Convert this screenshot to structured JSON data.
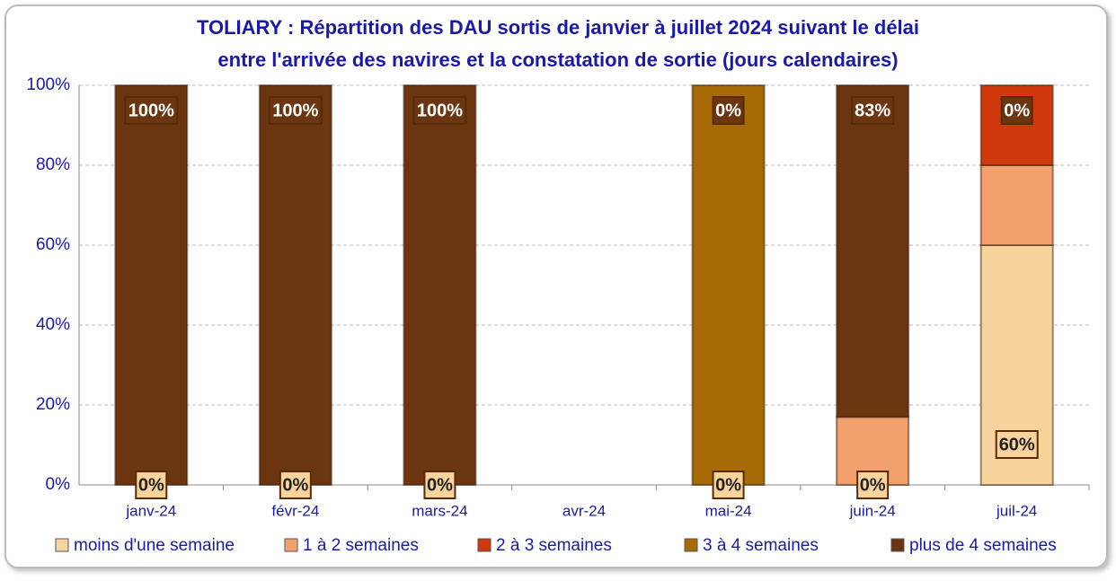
{
  "chart_data": {
    "type": "stacked_bar",
    "title": [
      "TOLIARY : Répartition des DAU sortis de janvier à juillet 2024 suivant le délai",
      "entre l'arrivée des navires et la constatation de sortie (jours calendaires)"
    ],
    "categories": [
      "janv-24",
      "févr-24",
      "mars-24",
      "avr-24",
      "mai-24",
      "juin-24",
      "juil-24"
    ],
    "series": [
      {
        "name": "moins d'une semaine",
        "color": "#f8d49c",
        "values": [
          0,
          0,
          0,
          null,
          0,
          0,
          60
        ],
        "value_labels": [
          "0%",
          "0%",
          "0%",
          null,
          "0%",
          "0%",
          "60%"
        ]
      },
      {
        "name": "1 à 2 semaines",
        "color": "#f4a06c",
        "values": [
          0,
          0,
          0,
          null,
          0,
          17,
          20
        ]
      },
      {
        "name": "2 à 3 semaines",
        "color": "#d0380e",
        "values": [
          0,
          0,
          0,
          null,
          0,
          0,
          20
        ]
      },
      {
        "name": "3 à 4 semaines",
        "color": "#a66a06",
        "values": [
          0,
          0,
          0,
          null,
          100,
          0,
          0
        ]
      },
      {
        "name": "plus de 4 semaines",
        "color": "#6b3510",
        "values": [
          100,
          100,
          100,
          null,
          0,
          83,
          0
        ],
        "value_labels": [
          "100%",
          "100%",
          "100%",
          null,
          "0%",
          "83%",
          "0%"
        ]
      }
    ],
    "ylim": [
      0,
      100
    ],
    "yticks": [
      {
        "value": 0,
        "label": "0%"
      },
      {
        "value": 20,
        "label": "20%"
      },
      {
        "value": 40,
        "label": "40%"
      },
      {
        "value": 60,
        "label": "60%"
      },
      {
        "value": 80,
        "label": "80%"
      },
      {
        "value": 100,
        "label": "100%"
      }
    ],
    "grid": true,
    "legend": "bottom"
  }
}
